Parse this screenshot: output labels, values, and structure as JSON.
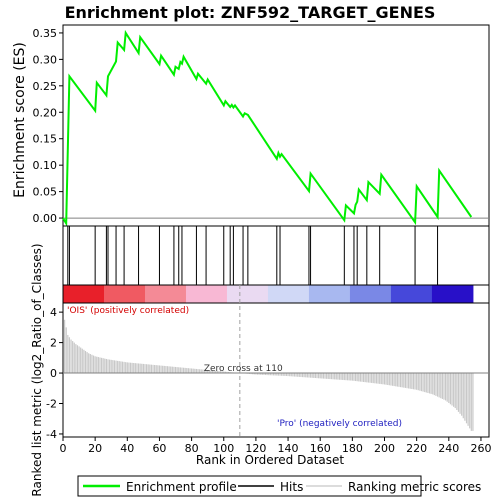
{
  "chart_data": {
    "type": "line",
    "title": "Enrichment plot: ZNF592_TARGET_GENES",
    "top_panel": {
      "ylabel": "Enrichment score (ES)",
      "ylim": [
        -0.015,
        0.365
      ],
      "yticks": [
        "0.00",
        "0.05",
        "0.10",
        "0.15",
        "0.20",
        "0.25",
        "0.30",
        "0.35"
      ],
      "series": [
        {
          "name": "Enrichment profile",
          "color": "#00ee00",
          "x": [
            0,
            2,
            4,
            20,
            21,
            27,
            28,
            33,
            34,
            38,
            39,
            47,
            48,
            60,
            61,
            69,
            70,
            72,
            73,
            74,
            75,
            83,
            84,
            89,
            90,
            100,
            101,
            104,
            105,
            106,
            107,
            112,
            113,
            115,
            133,
            134,
            135,
            136,
            153,
            154,
            175,
            176,
            181,
            182,
            183,
            184,
            189,
            190,
            197,
            198,
            219,
            220,
            233,
            234,
            254
          ],
          "values": [
            0.0,
            -0.01,
            0.268,
            0.203,
            0.256,
            0.232,
            0.268,
            0.296,
            0.332,
            0.318,
            0.35,
            0.312,
            0.342,
            0.291,
            0.307,
            0.271,
            0.286,
            0.282,
            0.295,
            0.292,
            0.305,
            0.263,
            0.273,
            0.254,
            0.262,
            0.213,
            0.221,
            0.21,
            0.214,
            0.209,
            0.213,
            0.192,
            0.198,
            0.195,
            0.112,
            0.123,
            0.116,
            0.121,
            0.051,
            0.084,
            -0.004,
            0.024,
            0.009,
            0.025,
            0.031,
            0.054,
            0.034,
            0.068,
            0.046,
            0.082,
            -0.008,
            0.06,
            0.002,
            0.09,
            0.002
          ]
        }
      ]
    },
    "hits": [
      3,
      4,
      20,
      27,
      28,
      33,
      38,
      47,
      60,
      69,
      72,
      74,
      83,
      89,
      100,
      104,
      106,
      112,
      115,
      133,
      135,
      153,
      154,
      175,
      181,
      183,
      189,
      197,
      219,
      233
    ],
    "heatmap_bar": {
      "colors": [
        "#e8202a",
        "#f05a62",
        "#f48a96",
        "#f8b8d4",
        "#eadaf2",
        "#d0d8f6",
        "#a8b8f0",
        "#7a88e6",
        "#4648da",
        "#2810c8"
      ]
    },
    "bottom_panel": {
      "ylabel": "Ranked list metric (log2_Ratio_of_Classes)",
      "ylim": [
        -4.2,
        4.6
      ],
      "yticks": [
        "-4",
        "-2",
        "0",
        "2",
        "4"
      ],
      "pos_label": "'OIS' (positively correlated)",
      "neg_label": "'Pro' (negatively correlated)",
      "zero_cross_label": "Zero cross at 110",
      "zero_cross_x": 110,
      "metric_x": [
        1,
        3,
        5,
        8,
        12,
        16,
        20,
        28,
        40,
        60,
        80,
        100,
        110,
        120,
        140,
        160,
        180,
        200,
        220,
        230,
        238,
        244,
        248,
        251,
        254
      ],
      "metric_values": [
        3.5,
        2.5,
        2.2,
        1.9,
        1.6,
        1.3,
        1.1,
        0.9,
        0.7,
        0.5,
        0.3,
        0.1,
        0.0,
        -0.1,
        -0.2,
        -0.35,
        -0.5,
        -0.75,
        -1.1,
        -1.4,
        -1.8,
        -2.3,
        -2.8,
        -3.3,
        -3.8
      ]
    },
    "xlabel": "Rank in Ordered Dataset",
    "xlim": [
      0,
      265
    ],
    "xticks": [
      "0",
      "20",
      "40",
      "60",
      "80",
      "100",
      "120",
      "140",
      "160",
      "180",
      "200",
      "220",
      "240",
      "260"
    ],
    "legend": {
      "placement": "bottom",
      "entries": [
        "Enrichment profile",
        "Hits",
        "Ranking metric scores"
      ]
    }
  }
}
